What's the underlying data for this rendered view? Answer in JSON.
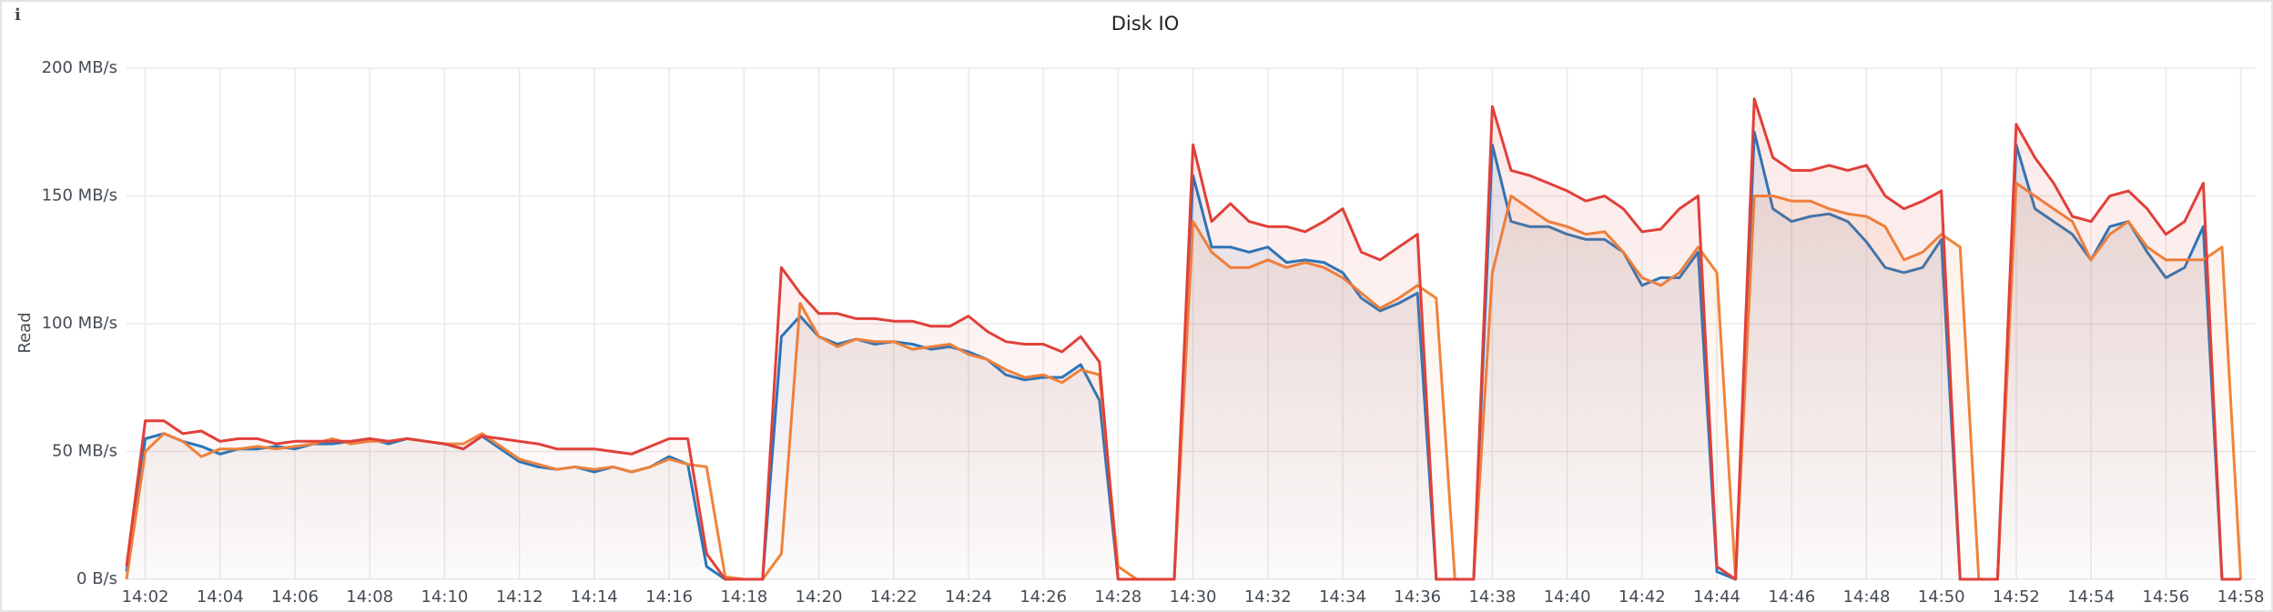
{
  "chart_data": {
    "type": "line",
    "title": "Disk IO",
    "y_label": "Read",
    "grid": true,
    "xlim": [
      841.5,
      898.4
    ],
    "ylim": [
      0,
      200
    ],
    "yticks": [
      {
        "value": 0,
        "label": "0 B/s"
      },
      {
        "value": 50,
        "label": "50 MB/s"
      },
      {
        "value": 100,
        "label": "100 MB/s"
      },
      {
        "value": 150,
        "label": "150 MB/s"
      },
      {
        "value": 200,
        "label": "200 MB/s"
      }
    ],
    "xticks": [
      {
        "value": 842,
        "label": "14:02"
      },
      {
        "value": 844,
        "label": "14:04"
      },
      {
        "value": 846,
        "label": "14:06"
      },
      {
        "value": 848,
        "label": "14:08"
      },
      {
        "value": 850,
        "label": "14:10"
      },
      {
        "value": 852,
        "label": "14:12"
      },
      {
        "value": 854,
        "label": "14:14"
      },
      {
        "value": 856,
        "label": "14:16"
      },
      {
        "value": 858,
        "label": "14:18"
      },
      {
        "value": 860,
        "label": "14:20"
      },
      {
        "value": 862,
        "label": "14:22"
      },
      {
        "value": 864,
        "label": "14:24"
      },
      {
        "value": 866,
        "label": "14:26"
      },
      {
        "value": 868,
        "label": "14:28"
      },
      {
        "value": 870,
        "label": "14:30"
      },
      {
        "value": 872,
        "label": "14:32"
      },
      {
        "value": 874,
        "label": "14:34"
      },
      {
        "value": 876,
        "label": "14:36"
      },
      {
        "value": 878,
        "label": "14:38"
      },
      {
        "value": 880,
        "label": "14:40"
      },
      {
        "value": 882,
        "label": "14:42"
      },
      {
        "value": 884,
        "label": "14:44"
      },
      {
        "value": 886,
        "label": "14:46"
      },
      {
        "value": 888,
        "label": "14:48"
      },
      {
        "value": 890,
        "label": "14:50"
      },
      {
        "value": 892,
        "label": "14:52"
      },
      {
        "value": 894,
        "label": "14:54"
      },
      {
        "value": 896,
        "label": "14:56"
      },
      {
        "value": 898,
        "label": "14:58"
      }
    ],
    "x": [
      841.5,
      842,
      842.5,
      843,
      843.5,
      844,
      844.5,
      845,
      845.5,
      846,
      846.5,
      847,
      847.5,
      848,
      848.5,
      849,
      849.5,
      850,
      850.5,
      851,
      851.5,
      852,
      852.5,
      853,
      853.5,
      854,
      854.5,
      855,
      855.5,
      856,
      856.5,
      857,
      857.5,
      858,
      858.5,
      859,
      859.5,
      860,
      860.5,
      861,
      861.5,
      862,
      862.5,
      863,
      863.5,
      864,
      864.5,
      865,
      865.5,
      866,
      866.5,
      867,
      867.5,
      868,
      868.5,
      869,
      869.5,
      870,
      870.5,
      871,
      871.5,
      872,
      872.5,
      873,
      873.5,
      874,
      874.5,
      875,
      875.5,
      876,
      876.5,
      877,
      877.5,
      878,
      878.5,
      879,
      879.5,
      880,
      880.5,
      881,
      881.5,
      882,
      882.5,
      883,
      883.5,
      884,
      884.5,
      885,
      885.5,
      886,
      886.5,
      887,
      887.5,
      888,
      888.5,
      889,
      889.5,
      890,
      890.5,
      891,
      891.5,
      892,
      892.5,
      893,
      893.5,
      894,
      894.5,
      895,
      895.5,
      896,
      896.5,
      897,
      897.5,
      898
    ],
    "series": [
      {
        "color": "#e0403a",
        "values": [
          5,
          62,
          62,
          57,
          58,
          54,
          55,
          55,
          53,
          54,
          54,
          54,
          54,
          55,
          54,
          55,
          54,
          53,
          51,
          56,
          55,
          54,
          53,
          51,
          51,
          51,
          50,
          49,
          52,
          55,
          55,
          10,
          0,
          0,
          0,
          122,
          112,
          104,
          104,
          102,
          102,
          101,
          101,
          99,
          99,
          103,
          97,
          93,
          92,
          92,
          89,
          95,
          85,
          0,
          0,
          0,
          0,
          170,
          140,
          147,
          140,
          138,
          138,
          136,
          140,
          145,
          128,
          125,
          130,
          135,
          0,
          0,
          0,
          185,
          160,
          158,
          155,
          152,
          148,
          150,
          145,
          136,
          137,
          145,
          150,
          5,
          0,
          188,
          165,
          160,
          160,
          162,
          160,
          162,
          150,
          145,
          148,
          152,
          0,
          0,
          0,
          178,
          165,
          155,
          142,
          140,
          150,
          152,
          145,
          135,
          140,
          155,
          0,
          0
        ]
      },
      {
        "color": "#ef843c",
        "values": [
          0,
          50,
          57,
          54,
          48,
          51,
          51,
          52,
          51,
          52,
          53,
          55,
          53,
          54,
          54,
          55,
          54,
          53,
          53,
          57,
          52,
          47,
          45,
          43,
          44,
          43,
          44,
          42,
          44,
          47,
          45,
          44,
          1,
          0,
          0,
          10,
          108,
          95,
          91,
          94,
          93,
          93,
          90,
          91,
          92,
          88,
          86,
          82,
          79,
          80,
          77,
          82,
          80,
          5,
          0,
          0,
          0,
          140,
          128,
          122,
          122,
          125,
          122,
          124,
          122,
          118,
          112,
          106,
          110,
          115,
          110,
          0,
          0,
          120,
          150,
          145,
          140,
          138,
          135,
          136,
          128,
          118,
          115,
          120,
          130,
          120,
          0,
          150,
          150,
          148,
          148,
          145,
          143,
          142,
          138,
          125,
          128,
          135,
          130,
          0,
          0,
          155,
          150,
          145,
          140,
          125,
          135,
          140,
          130,
          125,
          125,
          125,
          130,
          0
        ]
      },
      {
        "color": "#1f78c1",
        "values": [
          3,
          55,
          57,
          54,
          52,
          49,
          51,
          51,
          52,
          51,
          53,
          53,
          54,
          55,
          53,
          55,
          54,
          53,
          51,
          56,
          51,
          46,
          44,
          43,
          44,
          42,
          44,
          42,
          44,
          48,
          45,
          5,
          0,
          0,
          0,
          95,
          103,
          95,
          92,
          94,
          92,
          93,
          92,
          90,
          91,
          89,
          86,
          80,
          78,
          79,
          79,
          84,
          70,
          0,
          0,
          0,
          0,
          158,
          130,
          130,
          128,
          130,
          124,
          125,
          124,
          120,
          110,
          105,
          108,
          112,
          0,
          0,
          0,
          170,
          140,
          138,
          138,
          135,
          133,
          133,
          128,
          115,
          118,
          118,
          128,
          3,
          0,
          175,
          145,
          140,
          142,
          143,
          140,
          132,
          122,
          120,
          122,
          133,
          0,
          0,
          0,
          170,
          145,
          140,
          135,
          125,
          138,
          140,
          128,
          118,
          122,
          138,
          0,
          0
        ]
      }
    ]
  }
}
